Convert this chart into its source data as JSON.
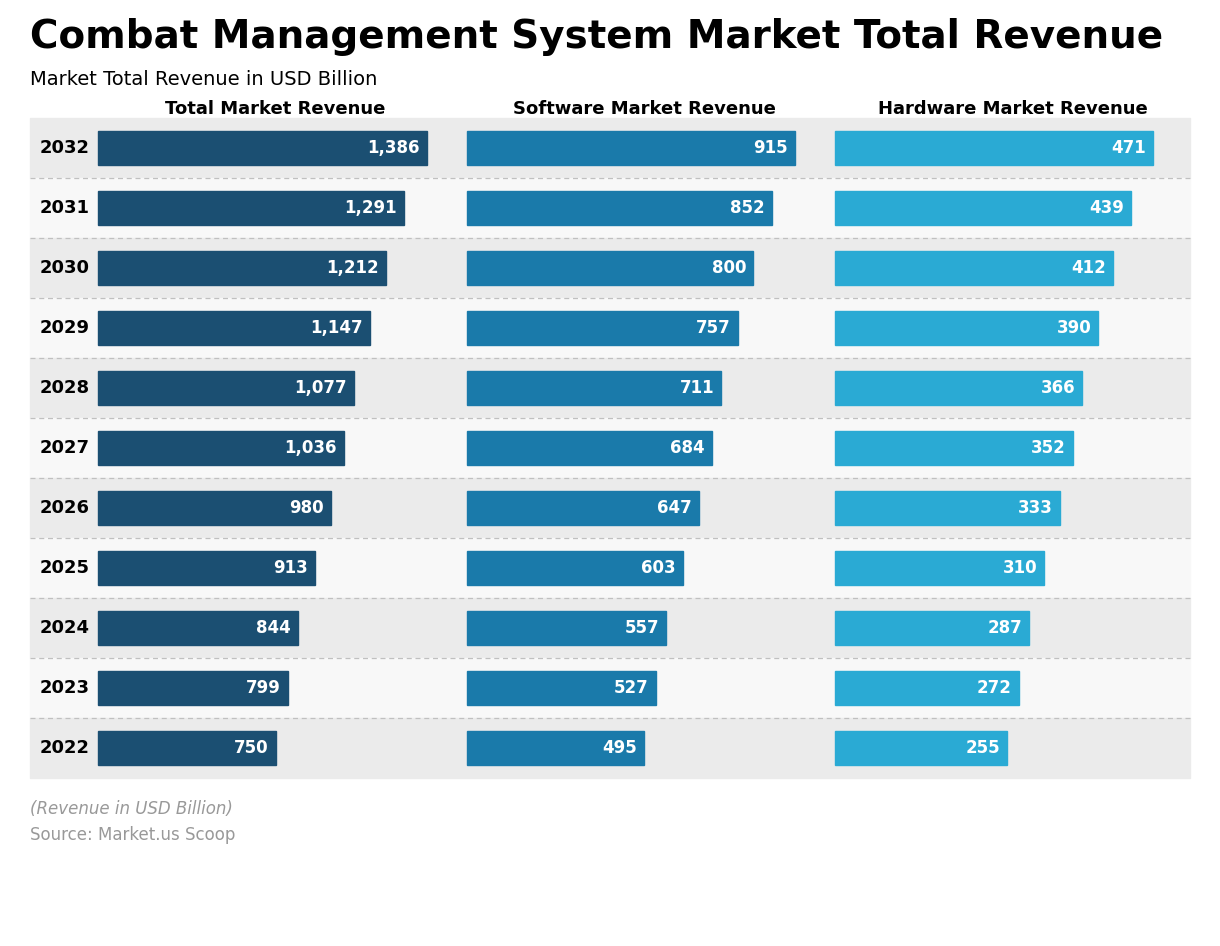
{
  "title": "Combat Management System Market Total Revenue",
  "subtitle": "Market Total Revenue in USD Billion",
  "footnote": "(Revenue in USD Billion)",
  "source": "Source: Market.us Scoop",
  "years": [
    2032,
    2031,
    2030,
    2029,
    2028,
    2027,
    2026,
    2025,
    2024,
    2023,
    2022
  ],
  "total_market": [
    1386,
    1291,
    1212,
    1147,
    1077,
    1036,
    980,
    913,
    844,
    799,
    750
  ],
  "software_market": [
    915,
    852,
    800,
    757,
    711,
    684,
    647,
    603,
    557,
    527,
    495
  ],
  "hardware_market": [
    471,
    439,
    412,
    390,
    366,
    352,
    333,
    310,
    287,
    272,
    255
  ],
  "col_headers": [
    "Total Market Revenue",
    "Software Market Revenue",
    "Hardware Market Revenue"
  ],
  "bar_color_total": "#1b4f72",
  "bar_color_software": "#1a7aaa",
  "bar_color_hardware": "#2aaad4",
  "bg_color_even": "#ebebeb",
  "bg_color_odd": "#f8f8f8",
  "title_fontsize": 28,
  "subtitle_fontsize": 14,
  "col_header_fontsize": 13,
  "year_fontsize": 13,
  "value_fontsize": 12,
  "footnote_fontsize": 12,
  "source_fontsize": 12,
  "max_total": 1450,
  "max_software": 960,
  "max_hardware": 510
}
